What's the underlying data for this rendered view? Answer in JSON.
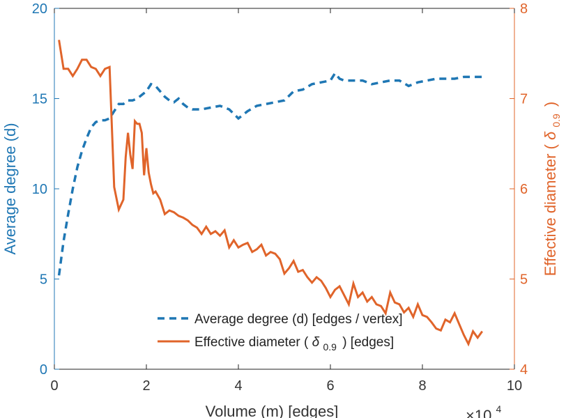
{
  "chart_data": {
    "type": "line",
    "title": "",
    "xlabel": "Volume (m) [edges]",
    "x_exponent_label": "×10",
    "x_exponent_power": "4",
    "xlim": [
      0,
      10
    ],
    "xticks": [
      "0",
      "2",
      "4",
      "6",
      "8",
      "10"
    ],
    "ylabel_left": "Average degree (d)",
    "ylim_left": [
      0,
      20
    ],
    "yticks_left": [
      "0",
      "5",
      "10",
      "15",
      "20"
    ],
    "ylabel_right_prefix": "Effective diameter (",
    "ylabel_right_symbol": "δ",
    "ylabel_right_subscript": "0.9",
    "ylabel_right_suffix": ")",
    "ylim_right": [
      4,
      8
    ],
    "yticks_right": [
      "4",
      "5",
      "6",
      "7",
      "8"
    ],
    "colors": {
      "left_axis": "#1f77b4",
      "right_axis": "#e0642a",
      "series1": "#1f77b4",
      "series2": "#e0642a"
    },
    "legend_position": "bottom-right",
    "series": [
      {
        "name": "Average degree (d) [edges / vertex]",
        "axis": "left",
        "style": "dashed",
        "x": [
          0.1,
          0.2,
          0.3,
          0.4,
          0.5,
          0.6,
          0.7,
          0.8,
          0.9,
          1.0,
          1.1,
          1.2,
          1.3,
          1.4,
          1.5,
          1.6,
          1.7,
          1.8,
          1.9,
          2.0,
          2.1,
          2.2,
          2.3,
          2.4,
          2.5,
          2.6,
          2.7,
          2.8,
          2.9,
          3.0,
          3.2,
          3.4,
          3.6,
          3.8,
          4.0,
          4.1,
          4.2,
          4.4,
          4.6,
          4.8,
          5.0,
          5.2,
          5.4,
          5.6,
          5.8,
          6.0,
          6.1,
          6.2,
          6.3,
          6.5,
          6.7,
          6.9,
          7.1,
          7.3,
          7.5,
          7.7,
          7.9,
          8.1,
          8.3,
          8.5,
          8.7,
          8.9,
          9.1,
          9.3
        ],
        "values": [
          5.2,
          7.1,
          8.6,
          10.0,
          11.2,
          12.1,
          12.8,
          13.4,
          13.7,
          13.8,
          13.8,
          13.9,
          14.3,
          14.7,
          14.7,
          14.9,
          14.9,
          15.0,
          15.2,
          15.4,
          15.8,
          15.7,
          15.4,
          15.1,
          14.9,
          14.8,
          15.0,
          14.7,
          14.5,
          14.4,
          14.4,
          14.5,
          14.6,
          14.4,
          13.9,
          14.1,
          14.3,
          14.6,
          14.7,
          14.8,
          14.9,
          15.4,
          15.5,
          15.8,
          15.9,
          16.0,
          16.4,
          16.1,
          16.0,
          16.0,
          16.0,
          15.8,
          15.9,
          16.0,
          16.0,
          15.7,
          15.9,
          16.0,
          16.1,
          16.1,
          16.1,
          16.2,
          16.2,
          16.2
        ]
      },
      {
        "name_prefix": "Effective diameter (",
        "name_symbol": "δ",
        "name_subscript": "0.9",
        "name_suffix": ") [edges]",
        "axis": "right",
        "style": "solid",
        "x": [
          0.1,
          0.2,
          0.3,
          0.4,
          0.5,
          0.6,
          0.7,
          0.8,
          0.9,
          1.0,
          1.1,
          1.2,
          1.3,
          1.4,
          1.5,
          1.55,
          1.6,
          1.65,
          1.7,
          1.75,
          1.8,
          1.85,
          1.9,
          1.95,
          2.0,
          2.05,
          2.1,
          2.15,
          2.2,
          2.3,
          2.4,
          2.5,
          2.6,
          2.7,
          2.8,
          2.9,
          3.0,
          3.1,
          3.2,
          3.3,
          3.4,
          3.5,
          3.6,
          3.7,
          3.8,
          3.9,
          4.0,
          4.1,
          4.2,
          4.3,
          4.4,
          4.5,
          4.6,
          4.7,
          4.8,
          4.9,
          5.0,
          5.1,
          5.2,
          5.3,
          5.4,
          5.5,
          5.6,
          5.7,
          5.8,
          5.9,
          6.0,
          6.1,
          6.2,
          6.3,
          6.4,
          6.5,
          6.6,
          6.7,
          6.8,
          6.9,
          7.0,
          7.1,
          7.2,
          7.3,
          7.4,
          7.5,
          7.6,
          7.7,
          7.8,
          7.9,
          8.0,
          8.1,
          8.2,
          8.3,
          8.4,
          8.5,
          8.6,
          8.7,
          8.8,
          8.9,
          9.0,
          9.1,
          9.2,
          9.3
        ],
        "values": [
          7.65,
          7.33,
          7.33,
          7.25,
          7.33,
          7.43,
          7.43,
          7.35,
          7.33,
          7.25,
          7.33,
          7.35,
          6.02,
          5.77,
          5.88,
          6.35,
          6.62,
          6.38,
          6.22,
          6.75,
          6.72,
          6.72,
          6.62,
          6.15,
          6.45,
          6.18,
          6.05,
          5.95,
          5.97,
          5.88,
          5.72,
          5.76,
          5.74,
          5.7,
          5.68,
          5.65,
          5.6,
          5.57,
          5.5,
          5.58,
          5.5,
          5.53,
          5.48,
          5.54,
          5.35,
          5.43,
          5.35,
          5.38,
          5.4,
          5.3,
          5.33,
          5.38,
          5.26,
          5.3,
          5.28,
          5.22,
          5.06,
          5.12,
          5.2,
          5.08,
          5.1,
          5.02,
          4.96,
          5.02,
          4.98,
          4.9,
          4.8,
          4.88,
          4.92,
          4.82,
          4.72,
          4.95,
          4.8,
          4.85,
          4.75,
          4.8,
          4.72,
          4.7,
          4.62,
          4.85,
          4.74,
          4.72,
          4.63,
          4.68,
          4.58,
          4.72,
          4.6,
          4.58,
          4.52,
          4.45,
          4.43,
          4.55,
          4.52,
          4.62,
          4.5,
          4.38,
          4.28,
          4.42,
          4.35,
          4.42
        ]
      }
    ]
  }
}
